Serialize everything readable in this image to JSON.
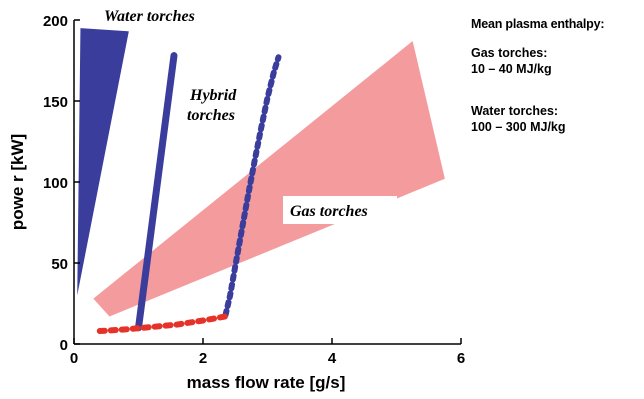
{
  "chart_data": {
    "type": "scatter",
    "xlabel": "mass flow rate [g/s]",
    "ylabel": "powe r [kW]",
    "xlim": [
      0,
      6
    ],
    "ylim": [
      0,
      200
    ],
    "x_ticks": [
      0,
      2,
      4,
      6
    ],
    "y_ticks": [
      0,
      50,
      100,
      150,
      200
    ],
    "grid": false,
    "colors": {
      "water": "#3a3d9c",
      "hybrid": "#3a3d9c",
      "gas": "#f49b9e",
      "low_power": "#e5332a"
    },
    "regions": [
      {
        "label": "Water torches",
        "shape": "polygon",
        "points": [
          [
            0.1,
            195
          ],
          [
            0.85,
            193
          ],
          [
            0.05,
            30
          ]
        ]
      },
      {
        "label": "Gas torches",
        "shape": "polygon",
        "points": [
          [
            0.3,
            28
          ],
          [
            5.25,
            187
          ],
          [
            5.75,
            102
          ],
          [
            0.55,
            17
          ]
        ]
      }
    ],
    "series": [
      {
        "label": "Hybrid torches",
        "style": "solid",
        "x": [
          1.0,
          1.55
        ],
        "y": [
          10,
          178
        ]
      },
      {
        "style": "dotted",
        "x": [
          2.35,
          2.42,
          2.5,
          2.6,
          2.7,
          2.8,
          2.9,
          3.0,
          3.1,
          3.17
        ],
        "y": [
          18,
          30,
          48,
          70,
          92,
          113,
          133,
          152,
          168,
          177
        ]
      },
      {
        "style": "dotted",
        "x": [
          0.4,
          0.8,
          1.2,
          1.6,
          2.0,
          2.35
        ],
        "y": [
          8,
          9,
          10.5,
          12,
          14.5,
          17
        ]
      }
    ],
    "side_notes": {
      "heading": "Mean plasma enthalpy:",
      "items": [
        {
          "title": "Gas torches:",
          "value": "10 – 40 MJ/kg"
        },
        {
          "title": "Water torches:",
          "value": "100 – 300 MJ/kg"
        }
      ]
    }
  }
}
